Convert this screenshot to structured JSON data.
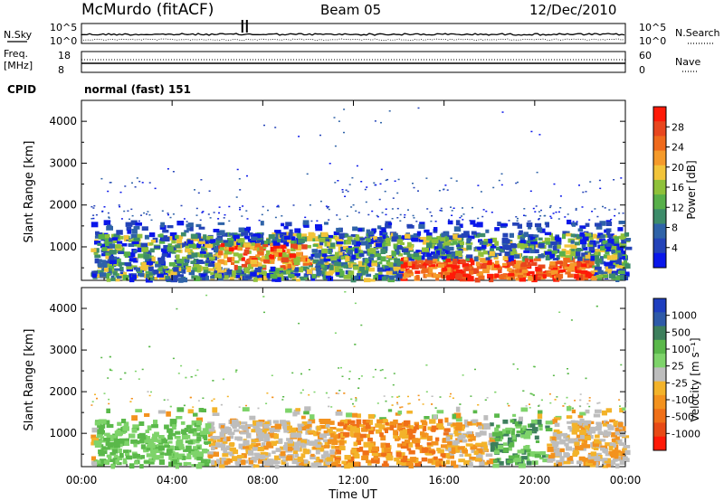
{
  "header": {
    "station": "McMurdo (fitACF)",
    "beam": "Beam 05",
    "date": "12/Dec/2010"
  },
  "top_panels": {
    "nsky_label": "N.Sky",
    "nsearch_label": "N.Search",
    "noise_ticks": [
      "10^5",
      "10^0"
    ],
    "freq_label_line1": "Freq.",
    "freq_label_line2": "[MHz]",
    "freq_ticks": [
      "18",
      "8"
    ],
    "nave_label": "Nave",
    "nave_ticks": [
      "60",
      "0"
    ],
    "cpid_label": "CPID",
    "cpid_value": "normal (fast) 151"
  },
  "chart_data": [
    {
      "type": "heatmap",
      "name": "power",
      "ylabel": "Slant Range [km]",
      "yticks": [
        "1000",
        "2000",
        "3000",
        "4000"
      ],
      "ylim": [
        200,
        4500
      ],
      "xlim": [
        0,
        24
      ],
      "colorbar": {
        "label": "Power [dB]",
        "ticks": [
          "28",
          "24",
          "20",
          "16",
          "12",
          "8",
          "4"
        ],
        "colors": [
          "#0a17ea",
          "#2443b8",
          "#2f63a8",
          "#3d8c6a",
          "#58b04a",
          "#8fc13a",
          "#f2c43a",
          "#f59a2a",
          "#ef6a1c",
          "#e8461e",
          "#ff1a08"
        ]
      },
      "echo_bands": [
        {
          "t0": 0.5,
          "t1": 24,
          "r0": 250,
          "r1": 1300,
          "level": "low-mid"
        },
        {
          "t0": 6.5,
          "t1": 9.5,
          "r0": 500,
          "r1": 1050,
          "level": "high"
        },
        {
          "t0": 13.5,
          "t1": 22.5,
          "r0": 250,
          "r1": 700,
          "level": "high"
        },
        {
          "t0": 11.2,
          "t1": 13.5,
          "r0": 2300,
          "r1": 2600,
          "level": "low"
        }
      ]
    },
    {
      "type": "heatmap",
      "name": "velocity",
      "ylabel": "Slant Range [km]",
      "yticks": [
        "1000",
        "2000",
        "3000",
        "4000"
      ],
      "ylim": [
        200,
        4500
      ],
      "xlim": [
        0,
        24
      ],
      "xticks": [
        "00:00",
        "04:00",
        "08:00",
        "12:00",
        "16:00",
        "20:00",
        "00:00"
      ],
      "xlabel": "Time UT",
      "colorbar": {
        "label": "Velocity [m s⁻¹]",
        "ticks": [
          "1000",
          "500",
          "100",
          "25",
          "-25",
          "-100",
          "-500",
          "-1000"
        ],
        "colors": [
          "#1f3fbf",
          "#2e5aa8",
          "#3d7f5c",
          "#5ab84a",
          "#7ed36a",
          "#bdbdbd",
          "#f3b32a",
          "#f3921e",
          "#f07018",
          "#e84a16",
          "#ff1a08"
        ]
      }
    }
  ]
}
